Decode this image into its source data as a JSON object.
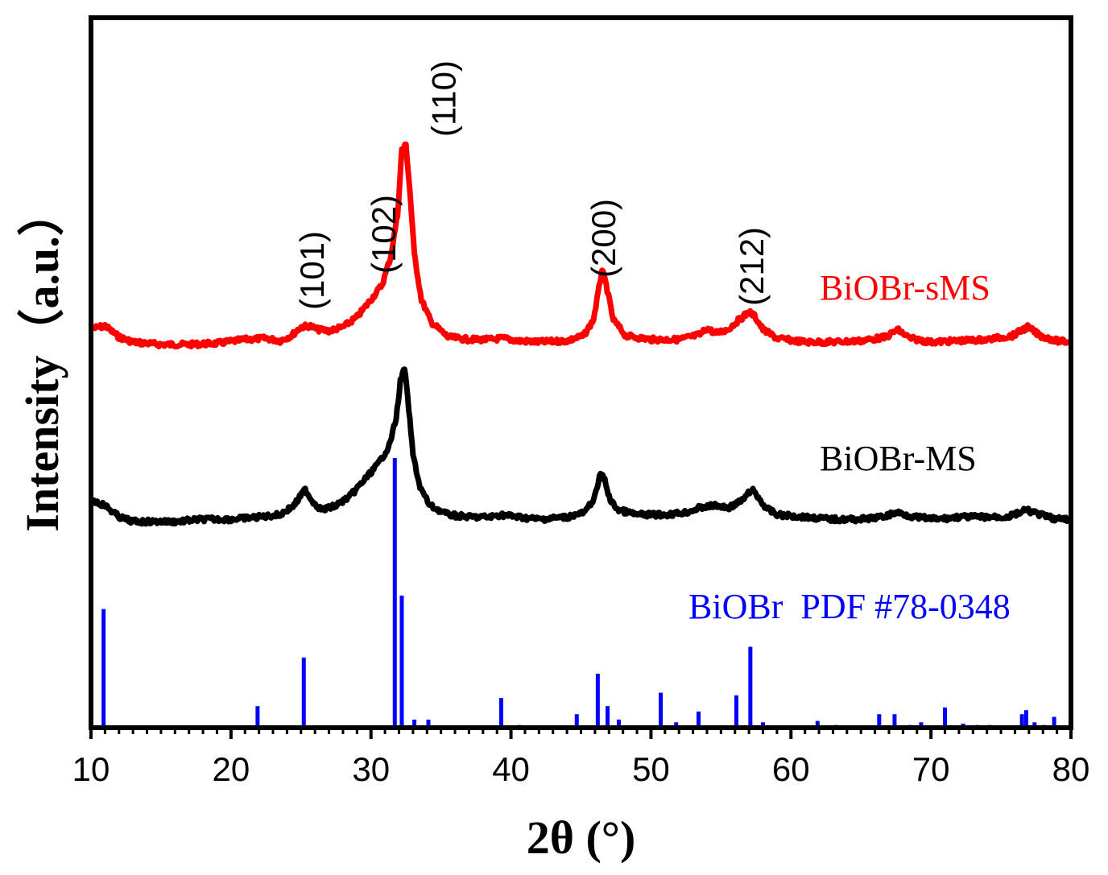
{
  "chart_data": {
    "type": "line",
    "title": "",
    "xlabel": "2θ (°)",
    "ylabel": "Intensity（a.u.）",
    "xlim": [
      10,
      80
    ],
    "xticks": [
      "10",
      "20",
      "30",
      "40",
      "50",
      "60",
      "70",
      "80"
    ],
    "y_ticks_shown": false,
    "grid": false,
    "series": [
      {
        "name": "BiOBr-sMS",
        "color": "#ff0000",
        "font": "serif-sans-mixed",
        "x": [
          10.2,
          11,
          12,
          13,
          14,
          15,
          17,
          19,
          21,
          22.5,
          23.5,
          24.3,
          25,
          25.6,
          26.2,
          27,
          28,
          29,
          30,
          30.8,
          31.4,
          31.9,
          32.2,
          32.5,
          32.8,
          33.1,
          33.6,
          34.3,
          35.5,
          37,
          38.5,
          39.4,
          40.5,
          42,
          44,
          45.2,
          45.9,
          46.3,
          46.5,
          46.8,
          47.3,
          48.2,
          50,
          52,
          53.5,
          54,
          54.6,
          55.5,
          56.3,
          57,
          57.4,
          58,
          59,
          61,
          63,
          65,
          66.8,
          67.6,
          68.5,
          70,
          72,
          74,
          75.8,
          76.9,
          77.8,
          79,
          79.8
        ],
        "y": [
          0.265,
          0.275,
          0.23,
          0.21,
          0.205,
          0.2,
          0.2,
          0.205,
          0.22,
          0.225,
          0.215,
          0.235,
          0.27,
          0.275,
          0.26,
          0.255,
          0.27,
          0.31,
          0.38,
          0.44,
          0.55,
          0.72,
          0.98,
          1.0,
          0.8,
          0.56,
          0.38,
          0.29,
          0.23,
          0.22,
          0.22,
          0.225,
          0.215,
          0.21,
          0.215,
          0.235,
          0.3,
          0.43,
          0.5,
          0.44,
          0.3,
          0.235,
          0.22,
          0.22,
          0.24,
          0.265,
          0.245,
          0.26,
          0.3,
          0.33,
          0.315,
          0.26,
          0.225,
          0.21,
          0.21,
          0.215,
          0.23,
          0.26,
          0.225,
          0.21,
          0.215,
          0.22,
          0.235,
          0.27,
          0.235,
          0.215,
          0.21
        ]
      },
      {
        "name": "BiOBr-MS",
        "color": "#000000",
        "x": [
          10.2,
          11,
          12,
          13,
          14,
          16,
          18,
          20,
          22,
          23.5,
          24.5,
          25.3,
          25.8,
          26.5,
          27.5,
          28.5,
          29.5,
          30.5,
          31.3,
          31.8,
          32.1,
          32.4,
          32.7,
          33,
          33.5,
          34.2,
          35.5,
          37,
          38.5,
          39.3,
          40.5,
          42,
          44,
          45.3,
          46,
          46.4,
          46.7,
          47.1,
          47.7,
          49,
          51,
          52.5,
          53.5,
          54.5,
          55.5,
          56.5,
          57.2,
          57.6,
          58.2,
          59,
          61,
          63,
          65,
          66.5,
          67.6,
          68.8,
          70.5,
          72,
          74,
          75.5,
          76.8,
          77.8,
          79,
          79.8
        ],
        "y": [
          0.11,
          0.1,
          0.075,
          0.065,
          0.065,
          0.065,
          0.07,
          0.07,
          0.075,
          0.08,
          0.1,
          0.135,
          0.11,
          0.09,
          0.1,
          0.12,
          0.155,
          0.19,
          0.23,
          0.29,
          0.37,
          0.4,
          0.31,
          0.21,
          0.14,
          0.1,
          0.08,
          0.075,
          0.075,
          0.08,
          0.075,
          0.07,
          0.075,
          0.085,
          0.12,
          0.17,
          0.155,
          0.11,
          0.09,
          0.08,
          0.08,
          0.085,
          0.095,
          0.1,
          0.095,
          0.11,
          0.135,
          0.12,
          0.095,
          0.08,
          0.075,
          0.07,
          0.07,
          0.075,
          0.085,
          0.075,
          0.07,
          0.075,
          0.075,
          0.075,
          0.09,
          0.08,
          0.07,
          0.07
        ]
      },
      {
        "name": "BiOBr  PDF #78-0348",
        "type": "stick",
        "color": "#0000ff",
        "x": [
          10.9,
          21.9,
          25.2,
          31.7,
          32.2,
          33.1,
          34.1,
          39.3,
          40.6,
          44.7,
          46.2,
          46.9,
          47.7,
          50.7,
          51.8,
          53.4,
          56.1,
          57.1,
          58.0,
          61.9,
          63.2,
          66.3,
          67.4,
          68.5,
          69.3,
          71.0,
          72.3,
          73.3,
          74.2,
          76.5,
          76.8,
          77.4,
          78.1,
          78.8
        ],
        "y": [
          0.44,
          0.08,
          0.26,
          1.0,
          0.49,
          0.03,
          0.03,
          0.11,
          0.01,
          0.05,
          0.2,
          0.08,
          0.03,
          0.13,
          0.02,
          0.06,
          0.12,
          0.3,
          0.02,
          0.025,
          0.01,
          0.05,
          0.05,
          0.01,
          0.02,
          0.075,
          0.015,
          0.01,
          0.01,
          0.05,
          0.065,
          0.02,
          0.01,
          0.04
        ]
      }
    ],
    "annotations": [
      {
        "text": "(101)",
        "x": 25.6
      },
      {
        "text": "(102)",
        "x": 30.7
      },
      {
        "text": "(110)",
        "x": 32.4
      },
      {
        "text": "(200)",
        "x": 46.4
      },
      {
        "text": "(212)",
        "x": 57.0
      }
    ]
  }
}
